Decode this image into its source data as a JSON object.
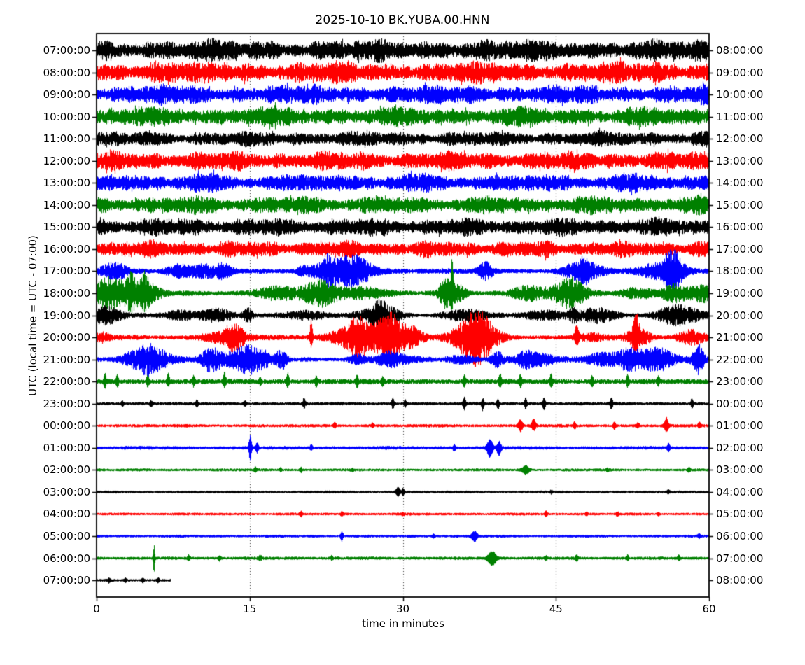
{
  "chart_data": {
    "type": "line",
    "subtype": "seismogram-helicorder-dayplot",
    "title": "2025-10-10 BK.YUBA.00.HNN",
    "xlabel": "time in minutes",
    "ylabel": "UTC (local time = UTC - 07:00)",
    "x_ticks": [
      0,
      15,
      30,
      45,
      60
    ],
    "x_grid": [
      15,
      30,
      45
    ],
    "x_range": [
      0,
      60
    ],
    "minutes_per_row": 60,
    "grid_style": "dotted",
    "palette": {
      "black": "#000000",
      "red": "#ff0000",
      "blue": "#0000ff",
      "green": "#008000"
    },
    "rows": [
      {
        "start": "07:00:00",
        "end": "08:00:00",
        "color": "black",
        "amp": 17,
        "style": "continuous",
        "spikes": []
      },
      {
        "start": "08:00:00",
        "end": "09:00:00",
        "color": "red",
        "amp": 17,
        "style": "continuous",
        "spikes": []
      },
      {
        "start": "09:00:00",
        "end": "10:00:00",
        "color": "blue",
        "amp": 15,
        "style": "continuous",
        "spikes": []
      },
      {
        "start": "10:00:00",
        "end": "11:00:00",
        "color": "green",
        "amp": 15,
        "style": "continuous",
        "spikes": []
      },
      {
        "start": "11:00:00",
        "end": "12:00:00",
        "color": "black",
        "amp": 12,
        "style": "continuous",
        "spikes": []
      },
      {
        "start": "12:00:00",
        "end": "13:00:00",
        "color": "red",
        "amp": 15,
        "style": "continuous",
        "spikes": []
      },
      {
        "start": "13:00:00",
        "end": "14:00:00",
        "color": "blue",
        "amp": 14,
        "style": "continuous",
        "spikes": []
      },
      {
        "start": "14:00:00",
        "end": "15:00:00",
        "color": "green",
        "amp": 14,
        "style": "continuous",
        "spikes": []
      },
      {
        "start": "15:00:00",
        "end": "16:00:00",
        "color": "black",
        "amp": 14,
        "style": "continuous",
        "spikes": []
      },
      {
        "start": "16:00:00",
        "end": "17:00:00",
        "color": "red",
        "amp": 13,
        "style": "continuous",
        "spikes": []
      },
      {
        "start": "17:00:00",
        "end": "18:00:00",
        "color": "blue",
        "amp": 8,
        "style": "bursty",
        "spikes": []
      },
      {
        "start": "18:00:00",
        "end": "19:00:00",
        "color": "green",
        "amp": 8,
        "style": "bursty",
        "spikes": [
          [
            34.8,
            45,
            14,
            0.15
          ]
        ]
      },
      {
        "start": "19:00:00",
        "end": "20:00:00",
        "color": "black",
        "amp": 7,
        "style": "bursty",
        "spikes": []
      },
      {
        "start": "20:00:00",
        "end": "21:00:00",
        "color": "red",
        "amp": 8,
        "style": "bursty",
        "spikes": [
          [
            21,
            24,
            12,
            0.2
          ],
          [
            47,
            16,
            10,
            0.3
          ],
          [
            52.8,
            22,
            12,
            0.4
          ]
        ]
      },
      {
        "start": "21:00:00",
        "end": "22:00:00",
        "color": "blue",
        "amp": 8,
        "style": "bursty",
        "spikes": []
      },
      {
        "start": "22:00:00",
        "end": "23:00:00",
        "color": "green",
        "amp": 3.5,
        "style": "spiky",
        "spikes": [
          [
            0.8,
            11,
            9
          ],
          [
            2,
            9,
            8
          ],
          [
            5,
            9,
            7
          ],
          [
            7,
            12,
            6
          ],
          [
            9.5,
            7,
            6
          ],
          [
            12.5,
            13,
            7
          ],
          [
            16,
            6,
            5
          ],
          [
            18.7,
            11,
            8
          ],
          [
            21.5,
            7,
            6
          ],
          [
            25.5,
            9,
            8
          ],
          [
            28,
            6,
            5
          ],
          [
            36,
            7,
            6
          ],
          [
            39.5,
            10,
            8
          ],
          [
            41.5,
            9,
            7
          ],
          [
            44.5,
            10,
            8
          ],
          [
            48.5,
            9,
            7
          ],
          [
            52,
            8,
            6
          ],
          [
            55,
            6,
            5
          ]
        ]
      },
      {
        "start": "23:00:00",
        "end": "00:00:00",
        "color": "black",
        "amp": 2.2,
        "style": "quiet",
        "spikes": [
          [
            2.5,
            4,
            3
          ],
          [
            5.3,
            4,
            4
          ],
          [
            9.8,
            5,
            4
          ],
          [
            14.5,
            4,
            4
          ],
          [
            20.3,
            7,
            6
          ],
          [
            29,
            8,
            7
          ],
          [
            30.2,
            6,
            5
          ],
          [
            36,
            9,
            8
          ],
          [
            37.8,
            7,
            9
          ],
          [
            39.3,
            6,
            8
          ],
          [
            42,
            9,
            7
          ],
          [
            43.8,
            8,
            10
          ],
          [
            50.4,
            8,
            7
          ],
          [
            58.3,
            7,
            6
          ]
        ]
      },
      {
        "start": "00:00:00",
        "end": "01:00:00",
        "color": "red",
        "amp": 2.2,
        "style": "quiet",
        "spikes": [
          [
            23.3,
            5,
            3
          ],
          [
            27,
            4,
            2
          ],
          [
            41.5,
            9,
            8,
            0.3
          ],
          [
            42.8,
            10,
            7,
            0.3
          ],
          [
            46.8,
            5,
            4
          ],
          [
            50.7,
            6,
            5
          ],
          [
            53,
            4,
            3
          ],
          [
            55.8,
            11,
            8,
            0.3
          ],
          [
            59,
            5,
            4
          ]
        ]
      },
      {
        "start": "01:00:00",
        "end": "02:00:00",
        "color": "blue",
        "amp": 2.4,
        "style": "quiet",
        "spikes": [
          [
            15.03,
            18,
            17,
            0.2
          ],
          [
            15.7,
            7,
            6
          ],
          [
            21,
            4,
            3
          ],
          [
            35,
            4,
            4
          ],
          [
            38.5,
            12,
            13,
            0.4
          ],
          [
            39.4,
            9,
            11,
            0.3
          ],
          [
            56,
            6,
            5
          ]
        ]
      },
      {
        "start": "02:00:00",
        "end": "03:00:00",
        "color": "green",
        "amp": 2.0,
        "style": "quiet",
        "spikes": [
          [
            15.5,
            4,
            3
          ],
          [
            18,
            3,
            2
          ],
          [
            20,
            3,
            3
          ],
          [
            25,
            2,
            2
          ],
          [
            42,
            6,
            6,
            0.5
          ],
          [
            50,
            2,
            2
          ],
          [
            58,
            3,
            3
          ]
        ]
      },
      {
        "start": "03:00:00",
        "end": "04:00:00",
        "color": "black",
        "amp": 1.9,
        "style": "quiet",
        "spikes": [
          [
            29.5,
            7,
            6,
            0.3
          ],
          [
            30,
            5,
            5
          ],
          [
            44.5,
            2,
            2
          ],
          [
            56,
            3,
            2
          ]
        ]
      },
      {
        "start": "04:00:00",
        "end": "05:00:00",
        "color": "red",
        "amp": 1.9,
        "style": "quiet",
        "spikes": [
          [
            20,
            4,
            3
          ],
          [
            24,
            3,
            3
          ],
          [
            30,
            2,
            2
          ],
          [
            44,
            4,
            3
          ],
          [
            48,
            3,
            2
          ],
          [
            51,
            3,
            3
          ],
          [
            55,
            2,
            2
          ]
        ]
      },
      {
        "start": "05:00:00",
        "end": "06:00:00",
        "color": "blue",
        "amp": 1.9,
        "style": "quiet",
        "spikes": [
          [
            24,
            7,
            7
          ],
          [
            33,
            3,
            3
          ],
          [
            37,
            7,
            8,
            0.4
          ],
          [
            59,
            4,
            3
          ]
        ]
      },
      {
        "start": "06:00:00",
        "end": "07:00:00",
        "color": "green",
        "amp": 2.2,
        "style": "quiet",
        "spikes": [
          [
            5.6,
            19,
            21,
            0.12
          ],
          [
            9,
            4,
            3
          ],
          [
            12,
            3,
            3
          ],
          [
            16,
            4,
            3
          ],
          [
            23,
            3,
            2
          ],
          [
            38.7,
            9,
            10,
            0.6
          ],
          [
            44,
            3,
            3
          ],
          [
            47,
            5,
            4
          ],
          [
            52,
            4,
            3
          ],
          [
            57,
            4,
            3
          ]
        ]
      },
      {
        "start": "07:00:00",
        "end": "08:00:00",
        "color": "black",
        "amp": 2.0,
        "style": "quiet",
        "end_min": 7.3,
        "spikes": [
          [
            1.2,
            3,
            3
          ],
          [
            2.8,
            3,
            3
          ],
          [
            4.5,
            3,
            3
          ],
          [
            6,
            3,
            3
          ]
        ]
      }
    ]
  }
}
